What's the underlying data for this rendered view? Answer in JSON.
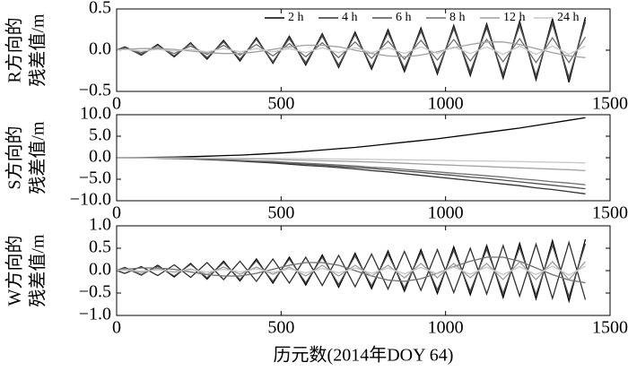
{
  "chart_data": [
    {
      "type": "line",
      "ylabel": [
        "R方向的",
        "残差值/m"
      ],
      "legend": "upper right",
      "x": [
        0,
        25,
        75,
        125,
        175,
        225,
        275,
        325,
        375,
        425,
        475,
        525,
        575,
        625,
        675,
        725,
        775,
        825,
        875,
        925,
        975,
        1025,
        1075,
        1125,
        1175,
        1225,
        1275,
        1325,
        1375,
        1425
      ],
      "xlim": [
        0,
        1500
      ],
      "xticks": [
        0,
        500,
        1000,
        1500
      ],
      "ylim": [
        -0.5,
        0.5
      ],
      "yticks": [
        {
          "value": -0.5,
          "label": "−0.5"
        },
        {
          "value": 0,
          "label": "0.0"
        },
        0.5
      ],
      "series": [
        {
          "name": "2 h",
          "color": "#000000",
          "values": [
            0,
            0.04,
            -0.06,
            0.07,
            -0.08,
            0.09,
            -0.11,
            0.12,
            -0.13,
            0.15,
            -0.16,
            0.17,
            -0.18,
            0.2,
            -0.21,
            0.22,
            -0.23,
            0.25,
            -0.26,
            0.27,
            -0.29,
            0.3,
            -0.31,
            0.32,
            -0.34,
            0.35,
            -0.36,
            0.38,
            -0.39,
            0.4
          ]
        },
        {
          "name": "4 h",
          "color": "#303030",
          "values": [
            0,
            0.04,
            -0.05,
            0.06,
            -0.07,
            0.08,
            -0.1,
            0.11,
            -0.12,
            0.14,
            -0.15,
            0.16,
            -0.17,
            0.19,
            -0.2,
            0.2,
            -0.21,
            0.23,
            -0.24,
            0.25,
            -0.27,
            0.28,
            -0.29,
            0.3,
            -0.32,
            0.33,
            -0.33,
            0.35,
            -0.36,
            0.37
          ]
        },
        {
          "name": "6 h",
          "color": "#505050",
          "values": [
            0,
            0.03,
            -0.05,
            0.06,
            -0.07,
            0.08,
            -0.09,
            0.1,
            -0.11,
            0.13,
            -0.14,
            0.14,
            -0.15,
            0.17,
            -0.18,
            0.19,
            -0.2,
            0.21,
            -0.22,
            0.23,
            -0.25,
            0.26,
            -0.26,
            0.27,
            -0.29,
            0.3,
            -0.31,
            0.32,
            -0.33,
            0.34
          ]
        },
        {
          "name": "8 h",
          "color": "#707070",
          "values": [
            0,
            0.02,
            -0.03,
            0.03,
            -0.04,
            0.05,
            -0.05,
            0.06,
            -0.06,
            0.07,
            -0.07,
            0.08,
            -0.08,
            0.09,
            -0.09,
            0.1,
            -0.1,
            0.11,
            -0.11,
            0.12,
            -0.12,
            0.13,
            -0.13,
            0.13,
            -0.14,
            0.14,
            -0.15,
            0.15,
            -0.15,
            0.16
          ]
        },
        {
          "name": "12 h",
          "color": "#a0a0a0",
          "values": [
            0,
            0.01,
            0.02,
            0.02,
            0.01,
            -0.01,
            -0.03,
            -0.04,
            -0.04,
            -0.02,
            0.01,
            0.04,
            0.06,
            0.06,
            0.04,
            0,
            -0.04,
            -0.07,
            -0.08,
            -0.06,
            -0.02,
            0.03,
            0.07,
            0.1,
            0.1,
            0.07,
            0.02,
            -0.03,
            -0.07,
            -0.09
          ]
        },
        {
          "name": "24 h",
          "color": "#c8c8c8",
          "values": [
            0,
            0.01,
            -0.01,
            0.01,
            -0.01,
            0.01,
            -0.02,
            0.02,
            -0.02,
            0.02,
            -0.02,
            0.02,
            -0.03,
            0.03,
            -0.03,
            0.03,
            -0.03,
            0.03,
            -0.04,
            0.04,
            -0.04,
            0.04,
            -0.04,
            0.04,
            -0.05,
            0.05,
            -0.05,
            0.05,
            -0.05,
            0.05
          ]
        }
      ]
    },
    {
      "type": "line",
      "ylabel": [
        "S方向的",
        "残差值/m"
      ],
      "x": [
        0,
        25,
        75,
        125,
        175,
        225,
        275,
        325,
        375,
        425,
        475,
        525,
        575,
        625,
        675,
        725,
        775,
        825,
        875,
        925,
        975,
        1025,
        1075,
        1125,
        1175,
        1225,
        1275,
        1325,
        1375,
        1425
      ],
      "xlim": [
        0,
        1500
      ],
      "xticks": [
        0,
        500,
        1000,
        1500
      ],
      "ylim": [
        -10,
        10
      ],
      "yticks": [
        {
          "value": -10,
          "label": "−10.0"
        },
        {
          "value": -5,
          "label": "−5.0"
        },
        {
          "value": 0,
          "label": "0.0"
        },
        {
          "value": 5,
          "label": "5.0"
        },
        {
          "value": 10,
          "label": "10.0"
        }
      ],
      "series": [
        {
          "color": "#000000",
          "values": [
            0,
            0,
            0.05,
            0.1,
            0.15,
            0.25,
            0.35,
            0.5,
            0.6,
            0.8,
            1.0,
            1.2,
            1.5,
            1.8,
            2.1,
            2.4,
            2.8,
            3.2,
            3.6,
            4.0,
            4.4,
            4.9,
            5.4,
            5.9,
            6.4,
            6.9,
            7.5,
            8.1,
            8.7,
            9.3
          ]
        },
        {
          "color": "#303030",
          "values": [
            0,
            0,
            -0.05,
            -0.1,
            -0.2,
            -0.3,
            -0.45,
            -0.6,
            -0.8,
            -1.0,
            -1.2,
            -1.5,
            -1.8,
            -2.0,
            -2.3,
            -2.6,
            -3.0,
            -3.3,
            -3.7,
            -4.1,
            -4.5,
            -4.9,
            -5.3,
            -5.7,
            -6.1,
            -6.5,
            -7.0,
            -7.4,
            -7.9,
            -8.4
          ]
        },
        {
          "color": "#505050",
          "values": [
            0,
            0,
            -0.05,
            -0.1,
            -0.15,
            -0.25,
            -0.4,
            -0.5,
            -0.7,
            -0.85,
            -1.0,
            -1.3,
            -1.5,
            -1.7,
            -2.0,
            -2.2,
            -2.5,
            -2.8,
            -3.1,
            -3.4,
            -3.8,
            -4.1,
            -4.5,
            -4.8,
            -5.2,
            -5.6,
            -6.0,
            -6.4,
            -6.8,
            -7.2
          ]
        },
        {
          "color": "#707070",
          "values": [
            0,
            0,
            -0.04,
            -0.09,
            -0.13,
            -0.22,
            -0.35,
            -0.44,
            -0.6,
            -0.74,
            -0.87,
            -1.1,
            -1.3,
            -1.5,
            -1.7,
            -1.9,
            -2.2,
            -2.4,
            -2.7,
            -3.0,
            -3.3,
            -3.6,
            -3.9,
            -4.2,
            -4.5,
            -4.9,
            -5.2,
            -5.6,
            -5.9,
            -6.3
          ]
        },
        {
          "color": "#a0a0a0",
          "values": [
            0,
            0,
            -0.02,
            -0.04,
            -0.06,
            -0.1,
            -0.15,
            -0.2,
            -0.25,
            -0.3,
            -0.4,
            -0.5,
            -0.6,
            -0.7,
            -0.8,
            -0.9,
            -1.0,
            -1.15,
            -1.3,
            -1.45,
            -1.6,
            -1.75,
            -1.9,
            -2.05,
            -2.2,
            -2.35,
            -2.5,
            -2.65,
            -2.8,
            -3.0
          ]
        },
        {
          "color": "#c8c8c8",
          "values": [
            0,
            0,
            -0.01,
            -0.02,
            -0.03,
            -0.05,
            -0.07,
            -0.09,
            -0.11,
            -0.14,
            -0.17,
            -0.2,
            -0.24,
            -0.28,
            -0.32,
            -0.36,
            -0.4,
            -0.45,
            -0.5,
            -0.55,
            -0.6,
            -0.66,
            -0.72,
            -0.78,
            -0.84,
            -0.9,
            -0.97,
            -1.04,
            -1.1,
            -1.2
          ]
        }
      ]
    },
    {
      "type": "line",
      "ylabel": [
        "W方向的",
        "残差值/m"
      ],
      "xlabel": "历元数(2014年DOY 64)",
      "x": [
        0,
        25,
        75,
        125,
        175,
        225,
        275,
        325,
        375,
        425,
        475,
        525,
        575,
        625,
        675,
        725,
        775,
        825,
        875,
        925,
        975,
        1025,
        1075,
        1125,
        1175,
        1225,
        1275,
        1325,
        1375,
        1425
      ],
      "xlim": [
        0,
        1500
      ],
      "xticks": [
        0,
        500,
        1000,
        1500
      ],
      "ylim": [
        -1,
        1
      ],
      "yticks": [
        {
          "value": -1,
          "label": "−1.0"
        },
        {
          "value": -0.5,
          "label": "−0.5"
        },
        {
          "value": 0,
          "label": "0.0"
        },
        0.5,
        {
          "value": 1,
          "label": "1.0"
        }
      ],
      "series": [
        {
          "color": "#000000",
          "values": [
            0,
            0.07,
            -0.1,
            0.12,
            -0.14,
            0.16,
            -0.19,
            0.21,
            -0.23,
            0.26,
            -0.28,
            0.3,
            -0.32,
            0.35,
            -0.37,
            0.39,
            -0.4,
            0.44,
            -0.46,
            0.47,
            -0.51,
            0.53,
            -0.54,
            0.56,
            -0.6,
            0.61,
            -0.63,
            0.67,
            -0.68,
            0.7
          ]
        },
        {
          "color": "#303030",
          "values": [
            0,
            -0.06,
            0.09,
            -0.11,
            0.13,
            -0.15,
            0.18,
            -0.2,
            0.21,
            -0.24,
            0.26,
            -0.28,
            0.3,
            -0.33,
            0.34,
            -0.36,
            0.37,
            -0.41,
            0.43,
            -0.44,
            0.47,
            -0.49,
            0.5,
            -0.52,
            0.56,
            -0.57,
            0.59,
            -0.62,
            0.63,
            -0.65
          ]
        },
        {
          "color": "#505050",
          "values": [
            0,
            0.06,
            -0.09,
            0.1,
            -0.12,
            0.14,
            -0.16,
            0.18,
            -0.2,
            0.22,
            -0.24,
            0.26,
            -0.27,
            0.3,
            -0.31,
            0.33,
            -0.34,
            0.37,
            -0.39,
            0.4,
            -0.43,
            0.45,
            -0.46,
            0.48,
            -0.51,
            0.52,
            -0.54,
            0.57,
            -0.58,
            0.6
          ]
        },
        {
          "color": "#707070",
          "values": [
            0,
            0.03,
            0.06,
            0.06,
            0.03,
            -0.03,
            -0.09,
            -0.12,
            -0.12,
            -0.06,
            0.03,
            0.12,
            0.18,
            0.18,
            0.12,
            0,
            -0.12,
            -0.21,
            -0.24,
            -0.18,
            -0.06,
            0.09,
            0.21,
            0.3,
            0.3,
            0.21,
            0.06,
            -0.09,
            -0.21,
            -0.27
          ]
        },
        {
          "color": "#a0a0a0",
          "values": [
            0,
            0.04,
            -0.04,
            0.04,
            -0.04,
            0.04,
            -0.08,
            0.08,
            -0.08,
            0.08,
            -0.08,
            0.08,
            -0.12,
            0.12,
            -0.12,
            0.12,
            -0.12,
            0.12,
            -0.16,
            0.16,
            -0.16,
            0.16,
            -0.16,
            0.16,
            -0.2,
            0.2,
            -0.2,
            0.2,
            -0.2,
            0.2
          ]
        },
        {
          "color": "#c8c8c8",
          "values": [
            0,
            0.01,
            -0.01,
            0.02,
            -0.02,
            0.02,
            -0.03,
            0.03,
            -0.03,
            0.04,
            -0.04,
            0.04,
            -0.05,
            0.05,
            -0.05,
            0.06,
            -0.06,
            0.06,
            -0.07,
            0.07,
            -0.07,
            0.08,
            -0.08,
            0.08,
            -0.09,
            0.09,
            -0.09,
            0.1,
            -0.1,
            0.1
          ]
        }
      ]
    }
  ]
}
